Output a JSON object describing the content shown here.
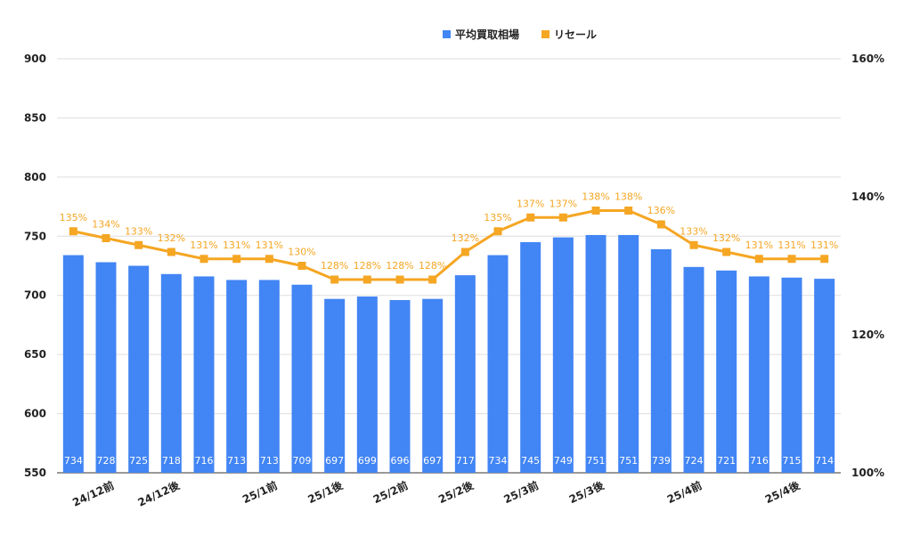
{
  "chart_data": {
    "type": "bar",
    "categories": [
      "",
      "24/12前",
      "",
      "24/12後",
      "",
      "",
      "25/1前",
      "",
      "25/1後",
      "",
      "25/2前",
      "",
      "25/2後",
      "",
      "25/3前",
      "",
      "25/3後",
      "",
      "",
      "25/4前",
      "",
      "",
      "25/4後",
      ""
    ],
    "series": [
      {
        "name": "平均買取相場",
        "type": "bar",
        "axis": "left",
        "color": "#4285f4",
        "values": [
          734,
          728,
          725,
          718,
          716,
          713,
          713,
          709,
          697,
          699,
          696,
          697,
          717,
          734,
          745,
          749,
          751,
          751,
          739,
          724,
          721,
          716,
          715,
          714
        ],
        "labels": [
          "734",
          "728",
          "725",
          "718",
          "716",
          "713",
          "713",
          "709",
          "697",
          "699",
          "696",
          "697",
          "717",
          "734",
          "745",
          "749",
          "751",
          "751",
          "739",
          "724",
          "721",
          "716",
          "715",
          "714"
        ]
      },
      {
        "name": "リセール",
        "type": "line",
        "axis": "right",
        "color": "#f5a623",
        "values": [
          135,
          134,
          133,
          132,
          131,
          131,
          131,
          130,
          128,
          128,
          128,
          128,
          132,
          135,
          137,
          137,
          138,
          138,
          136,
          133,
          132,
          131,
          131,
          131
        ],
        "labels": [
          "135%",
          "134%",
          "133%",
          "132%",
          "131%",
          "131%",
          "131%",
          "130%",
          "128%",
          "128%",
          "128%",
          "128%",
          "132%",
          "135%",
          "137%",
          "137%",
          "138%",
          "138%",
          "136%",
          "133%",
          "132%",
          "131%",
          "131%",
          "131%"
        ]
      }
    ],
    "y_left": {
      "min": 550,
      "max": 900,
      "ticks": [
        550,
        600,
        650,
        700,
        750,
        800,
        850,
        900
      ],
      "tick_labels": [
        "550",
        "600",
        "650",
        "700",
        "750",
        "800",
        "850",
        "900"
      ]
    },
    "y_right": {
      "min": 100,
      "max": 160,
      "ticks": [
        100,
        120,
        140,
        160
      ],
      "tick_labels": [
        "100%",
        "120%",
        "140%",
        "160%"
      ]
    },
    "grid": true,
    "legend": "top-center",
    "title": "",
    "xlabel": "",
    "ylabel": ""
  }
}
